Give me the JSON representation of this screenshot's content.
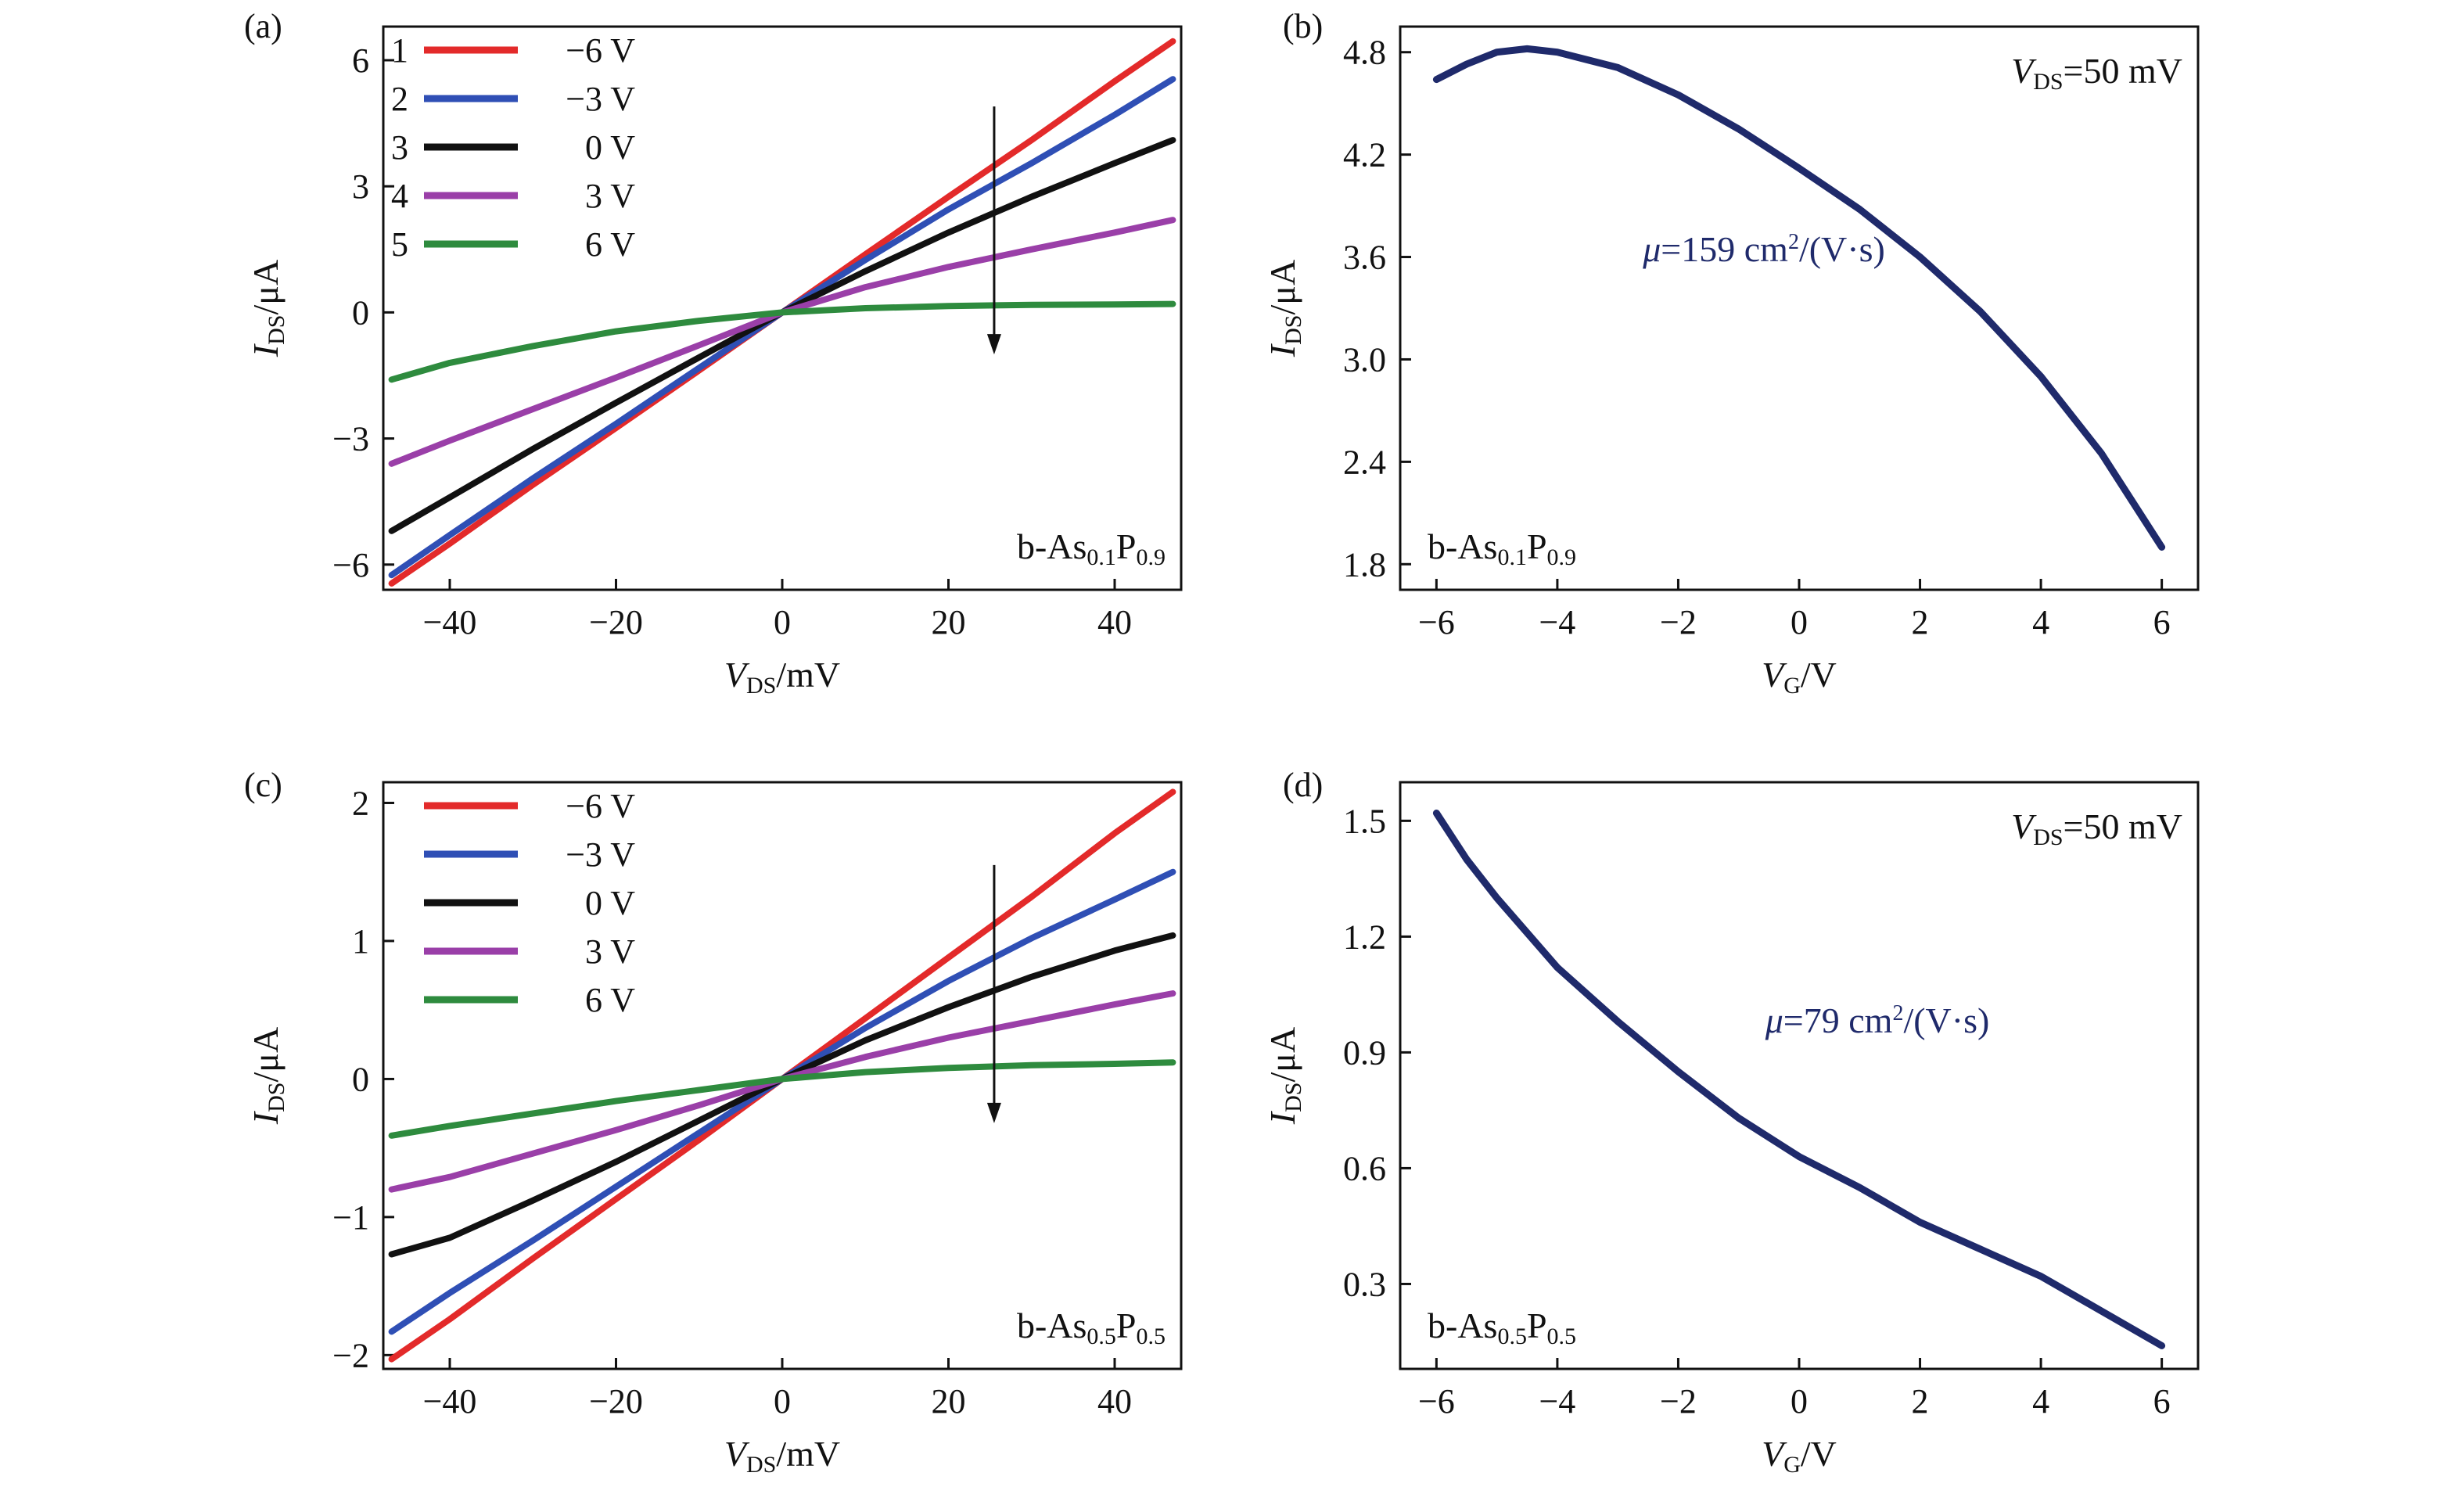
{
  "chart_data": [
    {
      "panel": "(a)",
      "type": "line",
      "xlabel": {
        "italic": "V",
        "sub": "DS",
        "rest": "/mV"
      },
      "ylabel": {
        "italic": "I",
        "sub": "DS",
        "rest": "/μA"
      },
      "xlim": [
        -48,
        48
      ],
      "ylim": [
        -6.6,
        6.8
      ],
      "xticks": [
        -40,
        -20,
        0,
        20,
        40
      ],
      "xtick_labels": [
        "−40",
        "−20",
        "0",
        "20",
        "40"
      ],
      "yticks": [
        -6,
        -3,
        0,
        3,
        6
      ],
      "ytick_labels": [
        "−6",
        "−3",
        "0",
        "3",
        "6"
      ],
      "legend_position": "top-left",
      "legend_numbered": true,
      "annotation": {
        "base": "b-As",
        "sub1": "0.1",
        "mid": "P",
        "sub2": "0.9"
      },
      "arrow": {
        "x": 25.5,
        "y_from": 4.9,
        "y_to": -1.0
      },
      "x": [
        -47,
        -40,
        -30,
        -20,
        -10,
        0,
        10,
        20,
        30,
        40,
        47
      ],
      "series": [
        {
          "number": "1",
          "name": "−6 V",
          "color": "#e32a2a",
          "values": [
            -6.45,
            -5.5,
            -4.1,
            -2.75,
            -1.38,
            0,
            1.38,
            2.75,
            4.1,
            5.5,
            6.45
          ]
        },
        {
          "number": "2",
          "name": "−3 V",
          "color": "#2f4fb5",
          "values": [
            -6.25,
            -5.3,
            -3.95,
            -2.65,
            -1.32,
            0,
            1.25,
            2.45,
            3.55,
            4.7,
            5.55
          ]
        },
        {
          "number": "3",
          "name": "0 V",
          "color": "#111111",
          "values": [
            -5.2,
            -4.4,
            -3.25,
            -2.15,
            -1.07,
            0,
            0.98,
            1.9,
            2.75,
            3.55,
            4.1
          ]
        },
        {
          "number": "4",
          "name": "3 V",
          "color": "#9a3fa8",
          "values": [
            -3.6,
            -3.05,
            -2.3,
            -1.55,
            -0.78,
            0,
            0.6,
            1.08,
            1.5,
            1.9,
            2.2
          ]
        },
        {
          "number": "5",
          "name": "6 V",
          "color": "#2e8b3e",
          "values": [
            -1.6,
            -1.2,
            -0.8,
            -0.45,
            -0.2,
            0,
            0.1,
            0.15,
            0.18,
            0.19,
            0.2
          ]
        }
      ]
    },
    {
      "panel": "(b)",
      "type": "line",
      "xlabel": {
        "italic": "V",
        "sub": "G",
        "rest": "/V"
      },
      "ylabel": {
        "italic": "I",
        "sub": "DS",
        "rest": "/μA"
      },
      "xlim": [
        -6.6,
        6.6
      ],
      "ylim": [
        1.65,
        4.95
      ],
      "xticks": [
        -6,
        -4,
        -2,
        0,
        2,
        4,
        6
      ],
      "xtick_labels": [
        "−6",
        "−4",
        "−2",
        "0",
        "2",
        "4",
        "6"
      ],
      "yticks": [
        1.8,
        2.4,
        3.0,
        3.6,
        4.2,
        4.8
      ],
      "ytick_labels": [
        "1.8",
        "2.4",
        "3.0",
        "3.6",
        "4.2",
        "4.8"
      ],
      "vds_note": {
        "italic": "V",
        "sub": "DS",
        "rest": "=50 mV"
      },
      "mobility": {
        "symbol": "μ",
        "value": "=159 cm",
        "sup": "2",
        "unit": "/(V·s)"
      },
      "annotation": {
        "base": "b-As",
        "sub1": "0.1",
        "mid": "P",
        "sub2": "0.9"
      },
      "x": [
        -6,
        -5.5,
        -5,
        -4.5,
        -4,
        -3,
        -2,
        -1,
        0,
        1,
        2,
        3,
        4,
        5,
        6
      ],
      "series": [
        {
          "color": "#1f2a6b",
          "values": [
            4.64,
            4.73,
            4.8,
            4.82,
            4.8,
            4.71,
            4.55,
            4.35,
            4.12,
            3.88,
            3.6,
            3.28,
            2.9,
            2.45,
            1.9
          ]
        }
      ]
    },
    {
      "panel": "(c)",
      "type": "line",
      "xlabel": {
        "italic": "V",
        "sub": "DS",
        "rest": "/mV"
      },
      "ylabel": {
        "italic": "I",
        "sub": "DS",
        "rest": "/μA"
      },
      "xlim": [
        -48,
        48
      ],
      "ylim": [
        -2.1,
        2.15
      ],
      "xticks": [
        -40,
        -20,
        0,
        20,
        40
      ],
      "xtick_labels": [
        "−40",
        "−20",
        "0",
        "20",
        "40"
      ],
      "yticks": [
        -2,
        -1,
        0,
        1,
        2
      ],
      "ytick_labels": [
        "−2",
        "−1",
        "0",
        "1",
        "2"
      ],
      "legend_position": "top-left",
      "legend_numbered": false,
      "annotation": {
        "base": "b-As",
        "sub1": "0.5",
        "mid": "P",
        "sub2": "0.5"
      },
      "arrow": {
        "x": 25.5,
        "y_from": 1.55,
        "y_to": -0.32
      },
      "x": [
        -47,
        -40,
        -30,
        -20,
        -10,
        0,
        10,
        20,
        30,
        40,
        47
      ],
      "series": [
        {
          "name": "−6 V",
          "color": "#e32a2a",
          "values": [
            -2.03,
            -1.74,
            -1.3,
            -0.87,
            -0.44,
            0,
            0.44,
            0.88,
            1.32,
            1.78,
            2.08
          ]
        },
        {
          "name": "−3 V",
          "color": "#2f4fb5",
          "values": [
            -1.83,
            -1.55,
            -1.17,
            -0.78,
            -0.39,
            0,
            0.37,
            0.71,
            1.02,
            1.3,
            1.5
          ]
        },
        {
          "name": "0 V",
          "color": "#111111",
          "values": [
            -1.27,
            -1.15,
            -0.88,
            -0.6,
            -0.3,
            0,
            0.28,
            0.52,
            0.74,
            0.93,
            1.04
          ]
        },
        {
          "name": "3 V",
          "color": "#9a3fa8",
          "values": [
            -0.8,
            -0.71,
            -0.54,
            -0.37,
            -0.19,
            0,
            0.16,
            0.3,
            0.42,
            0.54,
            0.62
          ]
        },
        {
          "name": "6 V",
          "color": "#2e8b3e",
          "values": [
            -0.41,
            -0.34,
            -0.25,
            -0.16,
            -0.08,
            0,
            0.05,
            0.08,
            0.1,
            0.11,
            0.12
          ]
        }
      ]
    },
    {
      "panel": "(d)",
      "type": "line",
      "xlabel": {
        "italic": "V",
        "sub": "G",
        "rest": "/V"
      },
      "ylabel": {
        "italic": "I",
        "sub": "DS",
        "rest": "/μA"
      },
      "xlim": [
        -6.6,
        6.6
      ],
      "ylim": [
        0.08,
        1.6
      ],
      "xticks": [
        -6,
        -4,
        -2,
        0,
        2,
        4,
        6
      ],
      "xtick_labels": [
        "−6",
        "−4",
        "−2",
        "0",
        "2",
        "4",
        "6"
      ],
      "yticks": [
        0.3,
        0.6,
        0.9,
        1.2,
        1.5
      ],
      "ytick_labels": [
        "0.3",
        "0.6",
        "0.9",
        "1.2",
        "1.5"
      ],
      "vds_note": {
        "italic": "V",
        "sub": "DS",
        "rest": "=50 mV"
      },
      "mobility": {
        "symbol": "μ",
        "value": "=79 cm",
        "sup": "2",
        "unit": "/(V·s)"
      },
      "annotation": {
        "base": "b-As",
        "sub1": "0.5",
        "mid": "P",
        "sub2": "0.5"
      },
      "x": [
        -6,
        -5.5,
        -5,
        -4,
        -3,
        -2,
        -1,
        0,
        1,
        2,
        3,
        4,
        5,
        6
      ],
      "series": [
        {
          "color": "#1f2a6b",
          "values": [
            1.52,
            1.4,
            1.3,
            1.12,
            0.98,
            0.85,
            0.73,
            0.63,
            0.55,
            0.46,
            0.39,
            0.32,
            0.23,
            0.14
          ]
        }
      ]
    }
  ]
}
